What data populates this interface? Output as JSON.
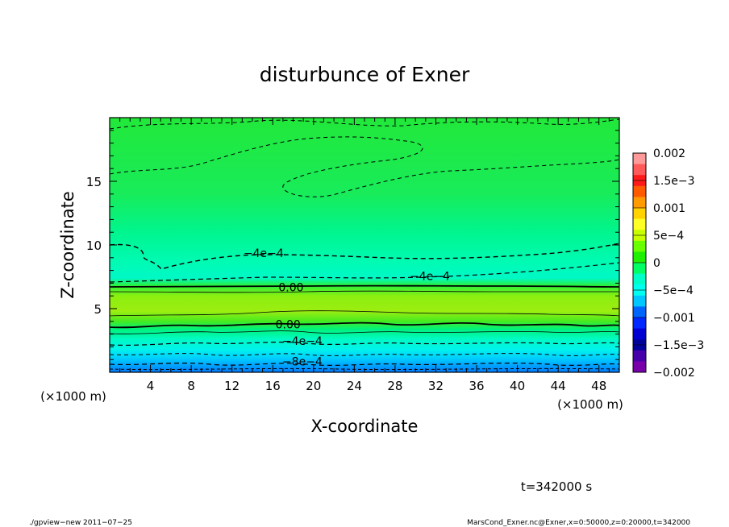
{
  "chart_data": {
    "type": "heatmap",
    "title": "disturbunce of Exner",
    "xlabel": "X-coordinate",
    "ylabel": "Z-coordinate",
    "x_unit": "(×1000 m)",
    "x_unit_left": "(×1000 m)",
    "xlim": [
      0,
      50
    ],
    "ylim": [
      0,
      20
    ],
    "x_ticks": [
      4,
      8,
      12,
      16,
      20,
      24,
      28,
      32,
      36,
      40,
      44,
      48
    ],
    "y_ticks": [
      5,
      10,
      15
    ],
    "time_label": "t=342000 s",
    "contour_labels": [
      {
        "text": "-4e-4",
        "x": 15.1,
        "z": 9.3
      },
      {
        "text": "-4e-4",
        "x": 31.4,
        "z": 7.5
      },
      {
        "text": "0.00",
        "x": 17.8,
        "z": 6.6
      },
      {
        "text": "0.00",
        "x": 17.5,
        "z": 3.7
      },
      {
        "text": "-4e-4",
        "x": 18.9,
        "z": 2.4
      },
      {
        "text": "-8e-4",
        "x": 18.9,
        "z": 0.8
      }
    ],
    "zero_contours": [
      6.7,
      3.6
    ],
    "colorbar": {
      "min": -0.002,
      "max": 0.002,
      "tick_labels": [
        "0.002",
        "1.5e−3",
        "0.001",
        "5e−4",
        "0",
        "−5e−4",
        "−0.001",
        "−1.5e−3",
        "−0.002"
      ],
      "tick_values": [
        0.002,
        0.0015,
        0.001,
        0.0005,
        0,
        -0.0005,
        -0.001,
        -0.0015,
        -0.002
      ],
      "colors": [
        "#ff9a9a",
        "#ff5a5a",
        "#ff1a1a",
        "#ff5a00",
        "#ff9a00",
        "#ffd200",
        "#ffff28",
        "#c8ff00",
        "#6aff00",
        "#1ef000",
        "#00ff64",
        "#00ffc8",
        "#00fff0",
        "#00c8ff",
        "#0064ff",
        "#0028ff",
        "#0000d2",
        "#00009b",
        "#4600aa",
        "#7800aa"
      ]
    }
  },
  "footer": {
    "left": "./gpview−new   2011−07−25",
    "right": "MarsCond_Exner.nc@Exner,x=0:50000,z=0:20000,t=342000"
  }
}
